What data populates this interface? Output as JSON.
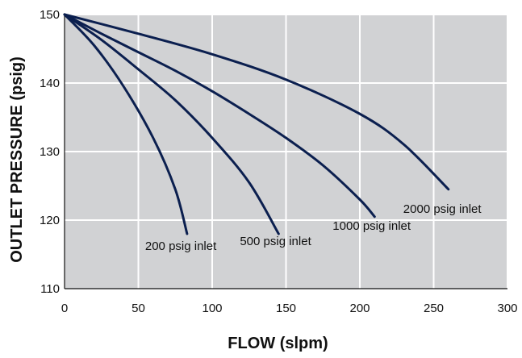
{
  "chart_data": {
    "type": "line",
    "title": "",
    "xlabel": "FLOW (slpm)",
    "ylabel": "OUTLET PRESSURE (psig)",
    "xlim": [
      0,
      300
    ],
    "ylim": [
      110,
      150
    ],
    "x_ticks": [
      0,
      50,
      100,
      150,
      200,
      250,
      300
    ],
    "y_ticks": [
      110,
      120,
      130,
      140,
      150
    ],
    "grid": true,
    "background_color": "#d1d2d4",
    "grid_color": "#ffffff",
    "line_color": "#0b1f4f",
    "series": [
      {
        "name": "200 psig inlet",
        "x": [
          0,
          20,
          40,
          60,
          75,
          83
        ],
        "y": [
          150,
          145.5,
          139.5,
          132,
          124.5,
          118
        ]
      },
      {
        "name": "500 psig inlet",
        "x": [
          0,
          25,
          50,
          75,
          100,
          125,
          145
        ],
        "y": [
          150,
          146.3,
          142,
          137.5,
          132,
          125.5,
          118
        ]
      },
      {
        "name": "1000 psig inlet",
        "x": [
          0,
          25,
          50,
          75,
          100,
          125,
          150,
          175,
          200,
          210
        ],
        "y": [
          150,
          147.2,
          144.5,
          141.8,
          138.8,
          135.5,
          132,
          128,
          123,
          120.5
        ]
      },
      {
        "name": "2000 psig inlet",
        "x": [
          0,
          50,
          100,
          150,
          200,
          230,
          260
        ],
        "y": [
          150,
          147.2,
          144.2,
          140.5,
          135.5,
          131,
          124.5
        ]
      }
    ]
  }
}
